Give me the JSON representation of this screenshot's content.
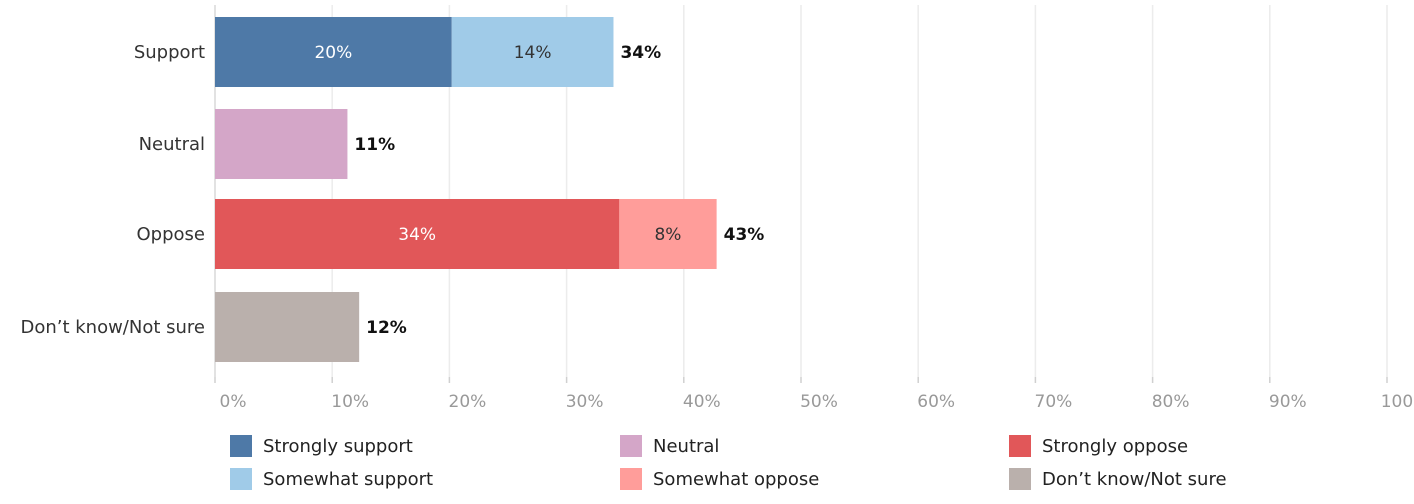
{
  "chart_data": {
    "type": "bar",
    "orientation": "horizontal",
    "stacked": true,
    "categories": [
      "Support",
      "Neutral",
      "Oppose",
      "Don’t know/Not sure"
    ],
    "segments": [
      [
        {
          "series": "Strongly support",
          "value": 20.2,
          "label": "20%"
        },
        {
          "series": "Somewhat support",
          "value": 13.8,
          "label": "14%"
        }
      ],
      [
        {
          "series": "Neutral",
          "value": 11.3,
          "label": ""
        }
      ],
      [
        {
          "series": "Strongly opposed",
          "value": 34.5,
          "label": "34%"
        },
        {
          "series": "Somewhat oppose",
          "value": 8.3,
          "label": "8%"
        }
      ],
      [
        {
          "series": "Don’t know/Not sure",
          "value": 12.3,
          "label": ""
        }
      ]
    ],
    "totals": [
      "34%",
      "11%",
      "43%",
      "12%"
    ],
    "xlim": [
      0,
      100
    ],
    "xticks": [
      0,
      10,
      20,
      30,
      40,
      50,
      60,
      70,
      80,
      90,
      100
    ],
    "xtick_labels": [
      "0%",
      "10%",
      "20%",
      "30%",
      "40%",
      "50%",
      "60%",
      "70%",
      "80%",
      "90%",
      "100%"
    ],
    "grid": true,
    "legend_position": "bottom",
    "legend": [
      {
        "name": "Strongly support",
        "color": "#4e79a7"
      },
      {
        "name": "Somewhat support",
        "color": "#a0cbe8"
      },
      {
        "name": "Neutral",
        "color": "#d4a6c8"
      },
      {
        "name": "Somewhat oppose",
        "color": "#ff9d9a"
      },
      {
        "name": "Strongly opposed",
        "color": "#e15759"
      },
      {
        "name": "Don’t know/Not sure",
        "color": "#bab0ac"
      }
    ],
    "legend_display_names": {
      "Strongly opposed": "Strongly oppose"
    },
    "segment_label_colors": {
      "Strongly support": "#ffffff",
      "Somewhat support": "#333333",
      "Strongly opposed": "#ffffff",
      "Somewhat oppose": "#333333"
    }
  }
}
